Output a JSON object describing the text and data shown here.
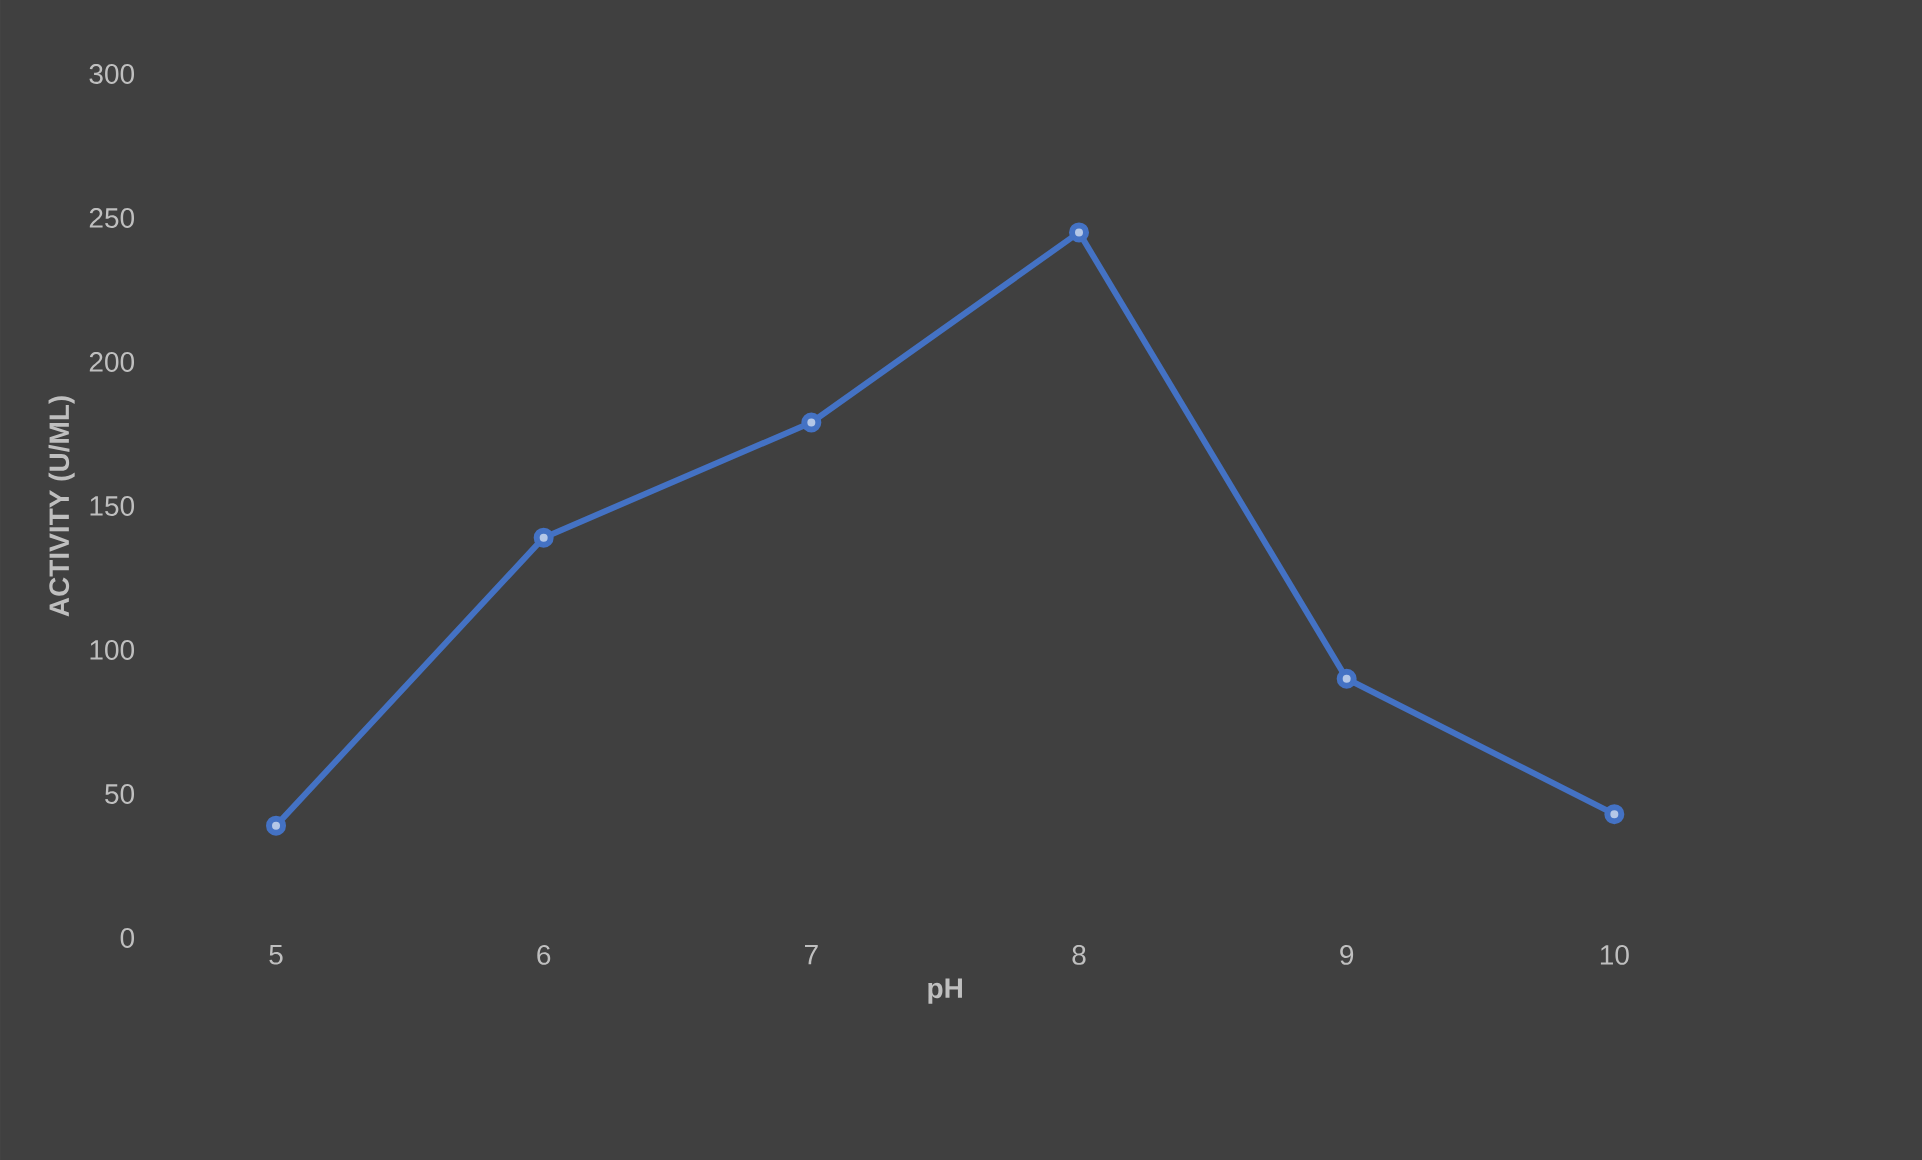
{
  "chart_data": {
    "type": "line",
    "xlabel": "pH",
    "ylabel": "ACTIVITY (U/ML)",
    "categories": [
      "5",
      "6",
      "7",
      "8",
      "9",
      "10"
    ],
    "series": [
      {
        "color": "#4472c4",
        "values": [
          39,
          139,
          179,
          245,
          90,
          43
        ]
      }
    ],
    "ylim": [
      0,
      300
    ],
    "yticks": [
      0,
      50,
      100,
      150,
      200,
      250,
      300
    ],
    "marker": "circle",
    "line_style": "solid"
  }
}
